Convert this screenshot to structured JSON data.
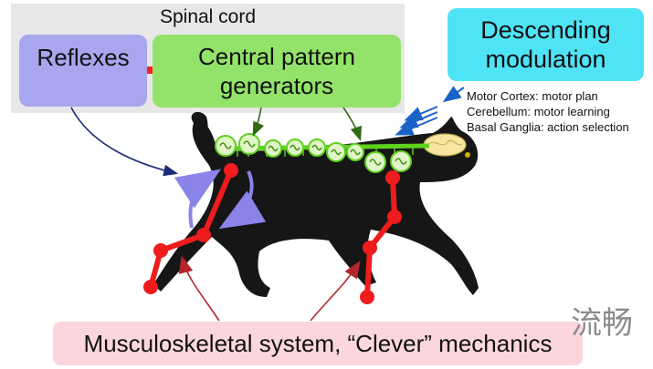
{
  "spinal_cord": {
    "label": "Spinal cord",
    "reflexes": "Reflexes",
    "cpg": "Central pattern\ngenerators"
  },
  "descending": {
    "label": "Descending\nmodulation",
    "items": [
      "Motor Cortex: motor plan",
      "Cerebellum: motor learning",
      "Basal Ganglia: action selection"
    ]
  },
  "musculoskeletal": "Musculoskeletal system, “Clever” mechanics",
  "watermark": "流畅",
  "colors": {
    "reflex_box": "#a8a6ef",
    "cpg_box": "#93e36b",
    "descending_box": "#4fe3f6",
    "musculo_box": "#fbd7dd",
    "spinal_panel": "#e7e7e7",
    "limb_red": "#ee1c1c",
    "cat_black": "#161616",
    "oscillator_green": "#5fd11f",
    "arrow_blue": "#1a62c7",
    "arrow_dark_red": "#b3262c",
    "arrow_navy": "#1e2a78"
  }
}
